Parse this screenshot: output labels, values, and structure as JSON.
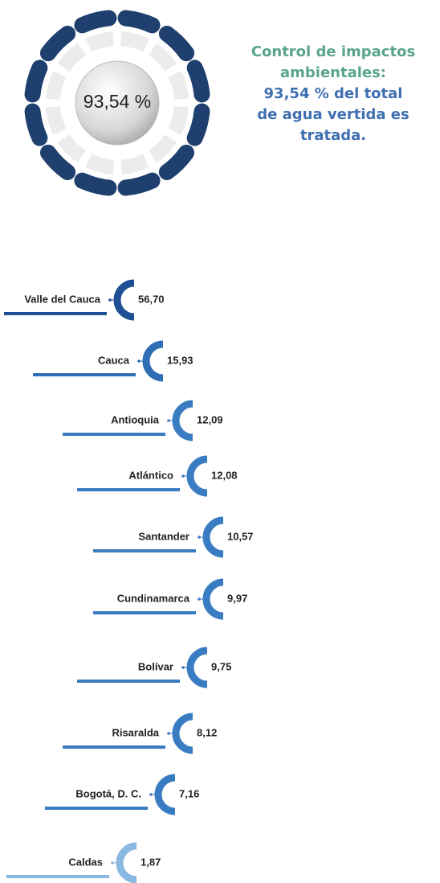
{
  "chart_data": [
    {
      "type": "gauge",
      "title": "Control de impactos ambientales:",
      "subtitle": "93,54 % del total de agua vertida es tratada.",
      "values": [
        93.54
      ],
      "value_labels": [
        "93,54 %"
      ],
      "color": "#1f3f6e",
      "title_color": "#5aa58a",
      "subtitle_color": "#3f6fb0"
    },
    {
      "type": "ring-list",
      "categories": [
        "Valle del Cauca",
        "Cauca",
        "Antioquia",
        "Atlántico",
        "Santander",
        "Cundinamarca",
        "Bolívar",
        "Risaralda",
        "Bogotá, D. C.",
        "Caldas"
      ],
      "values": [
        56.7,
        15.93,
        12.09,
        12.08,
        10.57,
        9.97,
        9.75,
        8.12,
        7.16,
        1.87
      ],
      "value_labels": [
        "56,70",
        "15,93",
        "12,09",
        "12,08",
        "10,57",
        "9,97",
        "9,75",
        "8,12",
        "7,16",
        "1,87"
      ],
      "colors": [
        "#1f4f95",
        "#2f6db5",
        "#3a7cc2",
        "#3a7cc2",
        "#3a7cc2",
        "#3a7cc2",
        "#3a7cc2",
        "#3a7cc2",
        "#3a7cc2",
        "#8ab8e0"
      ]
    }
  ]
}
